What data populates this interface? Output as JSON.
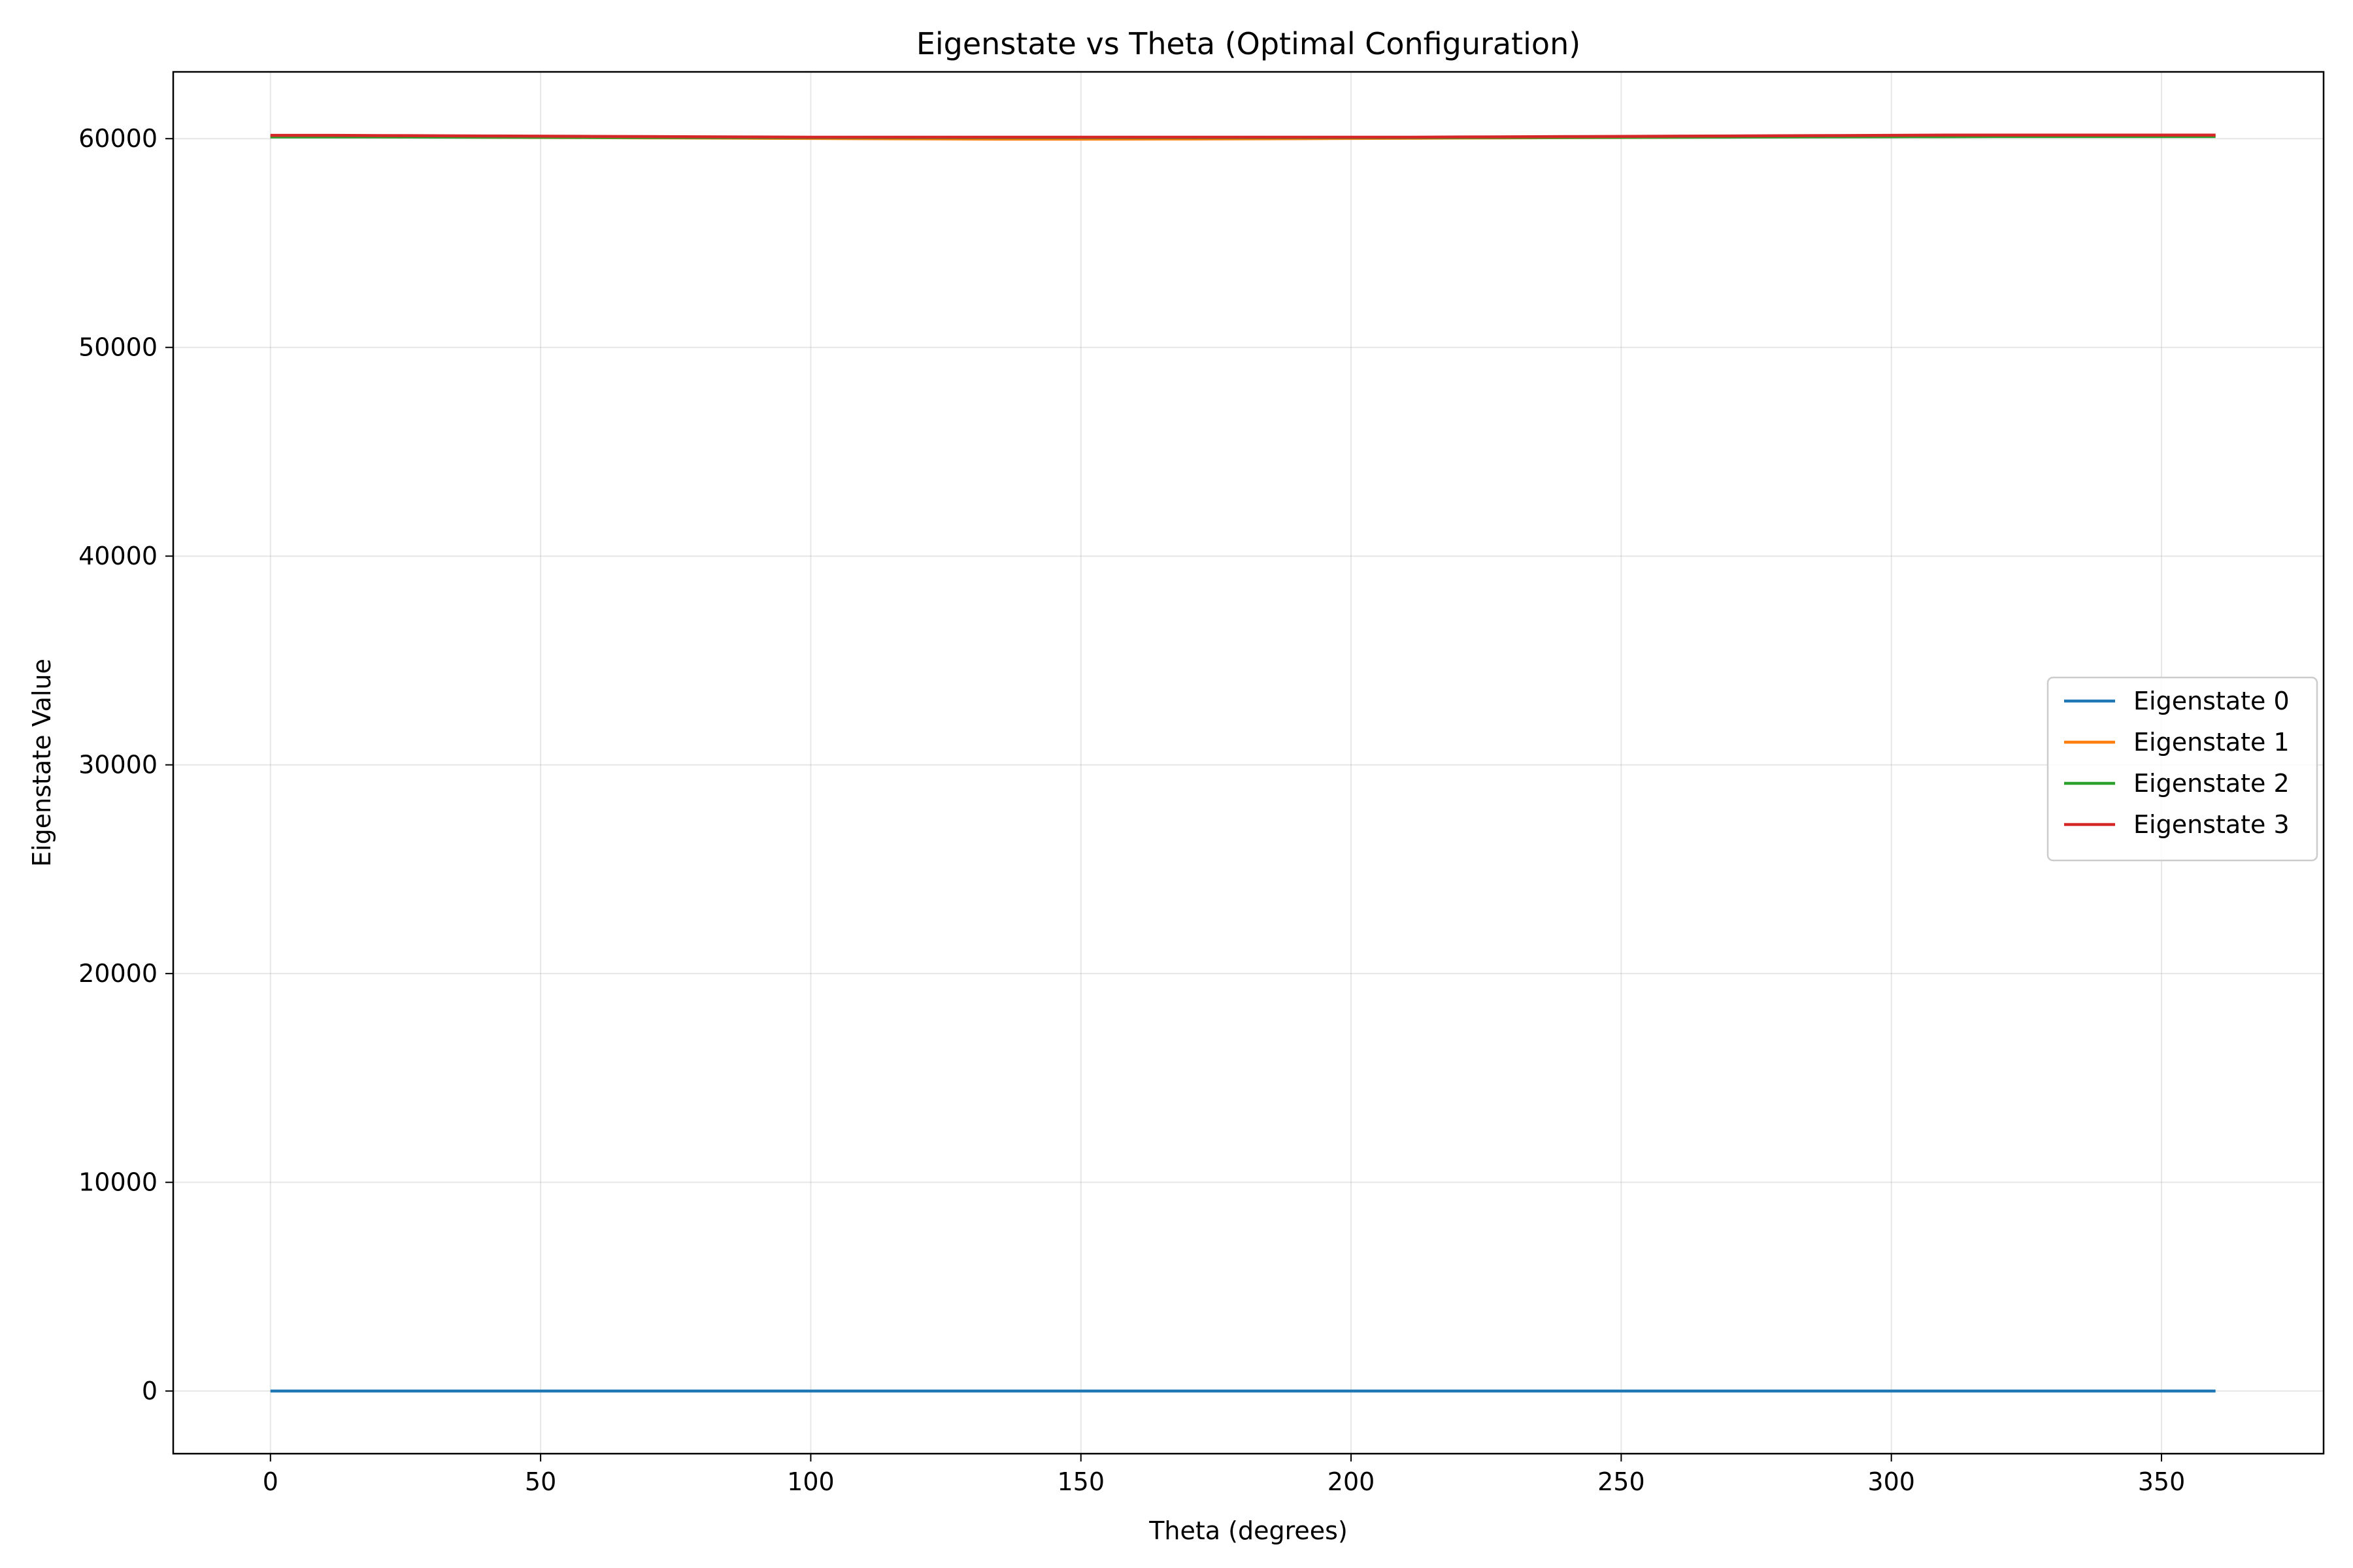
{
  "chart_data": {
    "type": "line",
    "title": "Eigenstate vs Theta (Optimal Configuration)",
    "xlabel": "Theta (degrees)",
    "ylabel": "Eigenstate Value",
    "xlim": [
      -18,
      380
    ],
    "ylim": [
      -3000,
      63200
    ],
    "xticks": [
      0,
      50,
      100,
      150,
      200,
      250,
      300,
      350
    ],
    "yticks": [
      0,
      10000,
      20000,
      30000,
      40000,
      50000,
      60000
    ],
    "grid": true,
    "legend_position": "center-right",
    "x": [
      0,
      10,
      20,
      30,
      40,
      50,
      60,
      70,
      80,
      90,
      100,
      110,
      120,
      130,
      140,
      150,
      160,
      170,
      180,
      190,
      200,
      210,
      220,
      230,
      240,
      250,
      260,
      270,
      280,
      290,
      300,
      310,
      320,
      330,
      340,
      350,
      360
    ],
    "series": [
      {
        "name": "Eigenstate 0",
        "color": "#1f77b4",
        "values": [
          0,
          0,
          0,
          0,
          0,
          0,
          0,
          0,
          0,
          0,
          0,
          0,
          0,
          0,
          0,
          0,
          0,
          0,
          0,
          0,
          0,
          0,
          0,
          0,
          0,
          0,
          0,
          0,
          0,
          0,
          0,
          0,
          0,
          0,
          0,
          0,
          0
        ]
      },
      {
        "name": "Eigenstate 1",
        "color": "#ff7f0e",
        "values": [
          60100,
          60100,
          60090,
          60080,
          60070,
          60060,
          60050,
          60040,
          60030,
          60020,
          60010,
          60000,
          59990,
          59980,
          59975,
          59975,
          59980,
          59985,
          59990,
          60000,
          60010,
          60020,
          60030,
          60040,
          60050,
          60060,
          60070,
          60080,
          60090,
          60100,
          60110,
          60120,
          60130,
          60130,
          60130,
          60130,
          60130
        ]
      },
      {
        "name": "Eigenstate 2",
        "color": "#2ca02c",
        "values": [
          60080,
          60080,
          60080,
          60075,
          60070,
          60065,
          60060,
          60055,
          60050,
          60050,
          60050,
          60050,
          60050,
          60050,
          60050,
          60050,
          60050,
          60050,
          60050,
          60050,
          60050,
          60050,
          60050,
          60055,
          60060,
          60065,
          60070,
          60075,
          60080,
          60085,
          60090,
          60095,
          60100,
          60100,
          60100,
          60100,
          60100
        ]
      },
      {
        "name": "Eigenstate 3",
        "color": "#d62728",
        "values": [
          60160,
          60160,
          60150,
          60140,
          60130,
          60120,
          60110,
          60100,
          60090,
          60080,
          60070,
          60070,
          60070,
          60070,
          60070,
          60070,
          60070,
          60070,
          60070,
          60070,
          60070,
          60070,
          60080,
          60090,
          60100,
          60110,
          60120,
          60130,
          60140,
          60150,
          60160,
          60170,
          60170,
          60170,
          60170,
          60170,
          60170
        ]
      }
    ]
  }
}
